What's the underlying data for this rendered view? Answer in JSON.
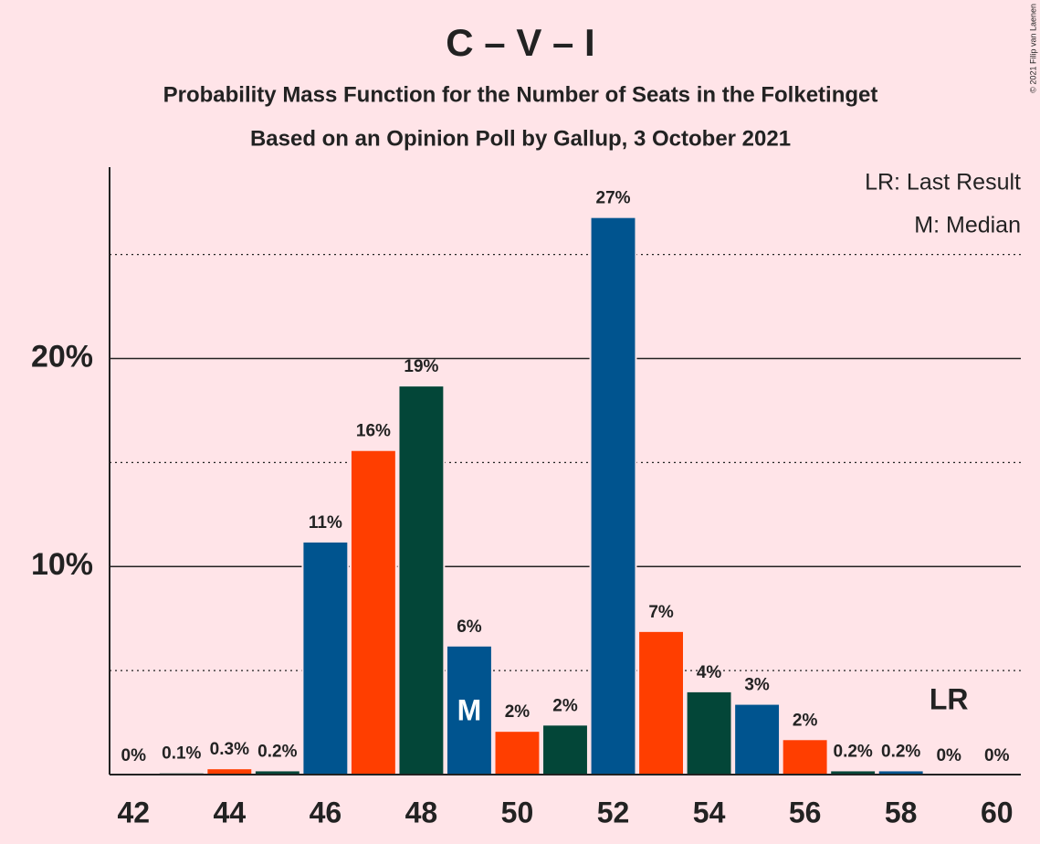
{
  "chart_data": {
    "type": "bar",
    "title": "C – V – I",
    "subtitle": "Probability Mass Function for the Number of Seats in the Folketinget",
    "subtitle2": "Based on an Opinion Poll by Gallup, 3 October 2021",
    "credit": "© 2021 Filip van Laenen",
    "legend": [
      "LR: Last Result",
      "M: Median"
    ],
    "x": [
      42,
      43,
      44,
      45,
      46,
      47,
      48,
      49,
      50,
      51,
      52,
      53,
      54,
      55,
      56,
      57,
      58,
      59,
      60
    ],
    "values": [
      0,
      0.1,
      0.3,
      0.2,
      11.2,
      15.6,
      18.7,
      6.2,
      2.1,
      2.4,
      26.8,
      6.9,
      4.0,
      3.4,
      1.7,
      0.2,
      0.2,
      0,
      0
    ],
    "value_labels": [
      "0%",
      "0.1%",
      "0.3%",
      "0.2%",
      "11%",
      "16%",
      "19%",
      "6%",
      "2%",
      "2%",
      "27%",
      "7%",
      "4%",
      "3%",
      "2%",
      "0.2%",
      "0.2%",
      "0%",
      "0%"
    ],
    "colors": [
      "#00548f",
      "#034638",
      "#ff3e00",
      "#034638",
      "#00548f",
      "#ff3e00",
      "#034638",
      "#00548f",
      "#ff3e00",
      "#034638",
      "#00548f",
      "#ff3e00",
      "#034638",
      "#00548f",
      "#ff3e00",
      "#034638",
      "#00548f",
      "#ff3e00",
      "#034638"
    ],
    "annotations": [
      {
        "text": "M",
        "x": 49
      },
      {
        "text": "LR",
        "x": 59
      }
    ],
    "xlim": [
      41.5,
      60.5
    ],
    "xticks": [
      42,
      44,
      46,
      48,
      50,
      52,
      54,
      56,
      58,
      60
    ],
    "ylim": [
      0,
      29.2
    ],
    "yticks": [
      {
        "value": 10,
        "label": "10%"
      },
      {
        "value": 20,
        "label": "20%"
      }
    ],
    "minor_yticks": [
      5,
      15,
      25
    ],
    "grid": true
  }
}
